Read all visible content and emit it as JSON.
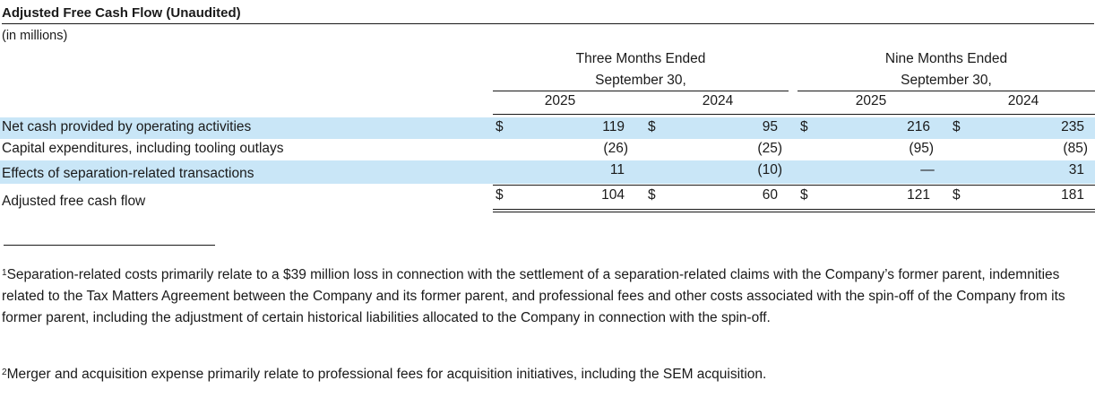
{
  "title": "Adjusted Free Cash Flow (Unaudited)",
  "units": "(in millions)",
  "period_headers": {
    "three": [
      "Three Months Ended",
      "September 30,"
    ],
    "nine": [
      "Nine Months Ended",
      "September 30,"
    ]
  },
  "years": [
    "2025",
    "2024",
    "2025",
    "2024"
  ],
  "currency_symbol": "$",
  "highlight_color": "#c9e6f7",
  "rows": [
    {
      "label": "Net cash provided by operating activities",
      "values": [
        "119",
        "95",
        "216",
        "235"
      ]
    },
    {
      "label": "Capital expenditures, including tooling outlays",
      "values": [
        "(26)",
        "(25)",
        "(95)",
        "(85)"
      ]
    },
    {
      "label": "Effects of separation-related transactions",
      "values": [
        "11",
        "(10)",
        "—",
        "31"
      ]
    },
    {
      "label": "Adjusted free cash flow",
      "values": [
        "104",
        "60",
        "121",
        "181"
      ]
    }
  ],
  "footnotes": [
    {
      "marker": "1",
      "text": "Separation-related costs primarily relate to a $39 million loss in connection with the settlement of a separation-related claims with the Company’s former parent, indemnities related to the Tax Matters Agreement between the Company and its former parent, and professional fees and other costs associated with the spin-off of the Company from its former parent, including the adjustment of certain historical liabilities allocated to the Company in connection with the spin-off."
    },
    {
      "marker": "2",
      "text": "Merger and acquisition expense primarily relate to professional fees for acquisition initiatives, including the SEM acquisition."
    }
  ]
}
